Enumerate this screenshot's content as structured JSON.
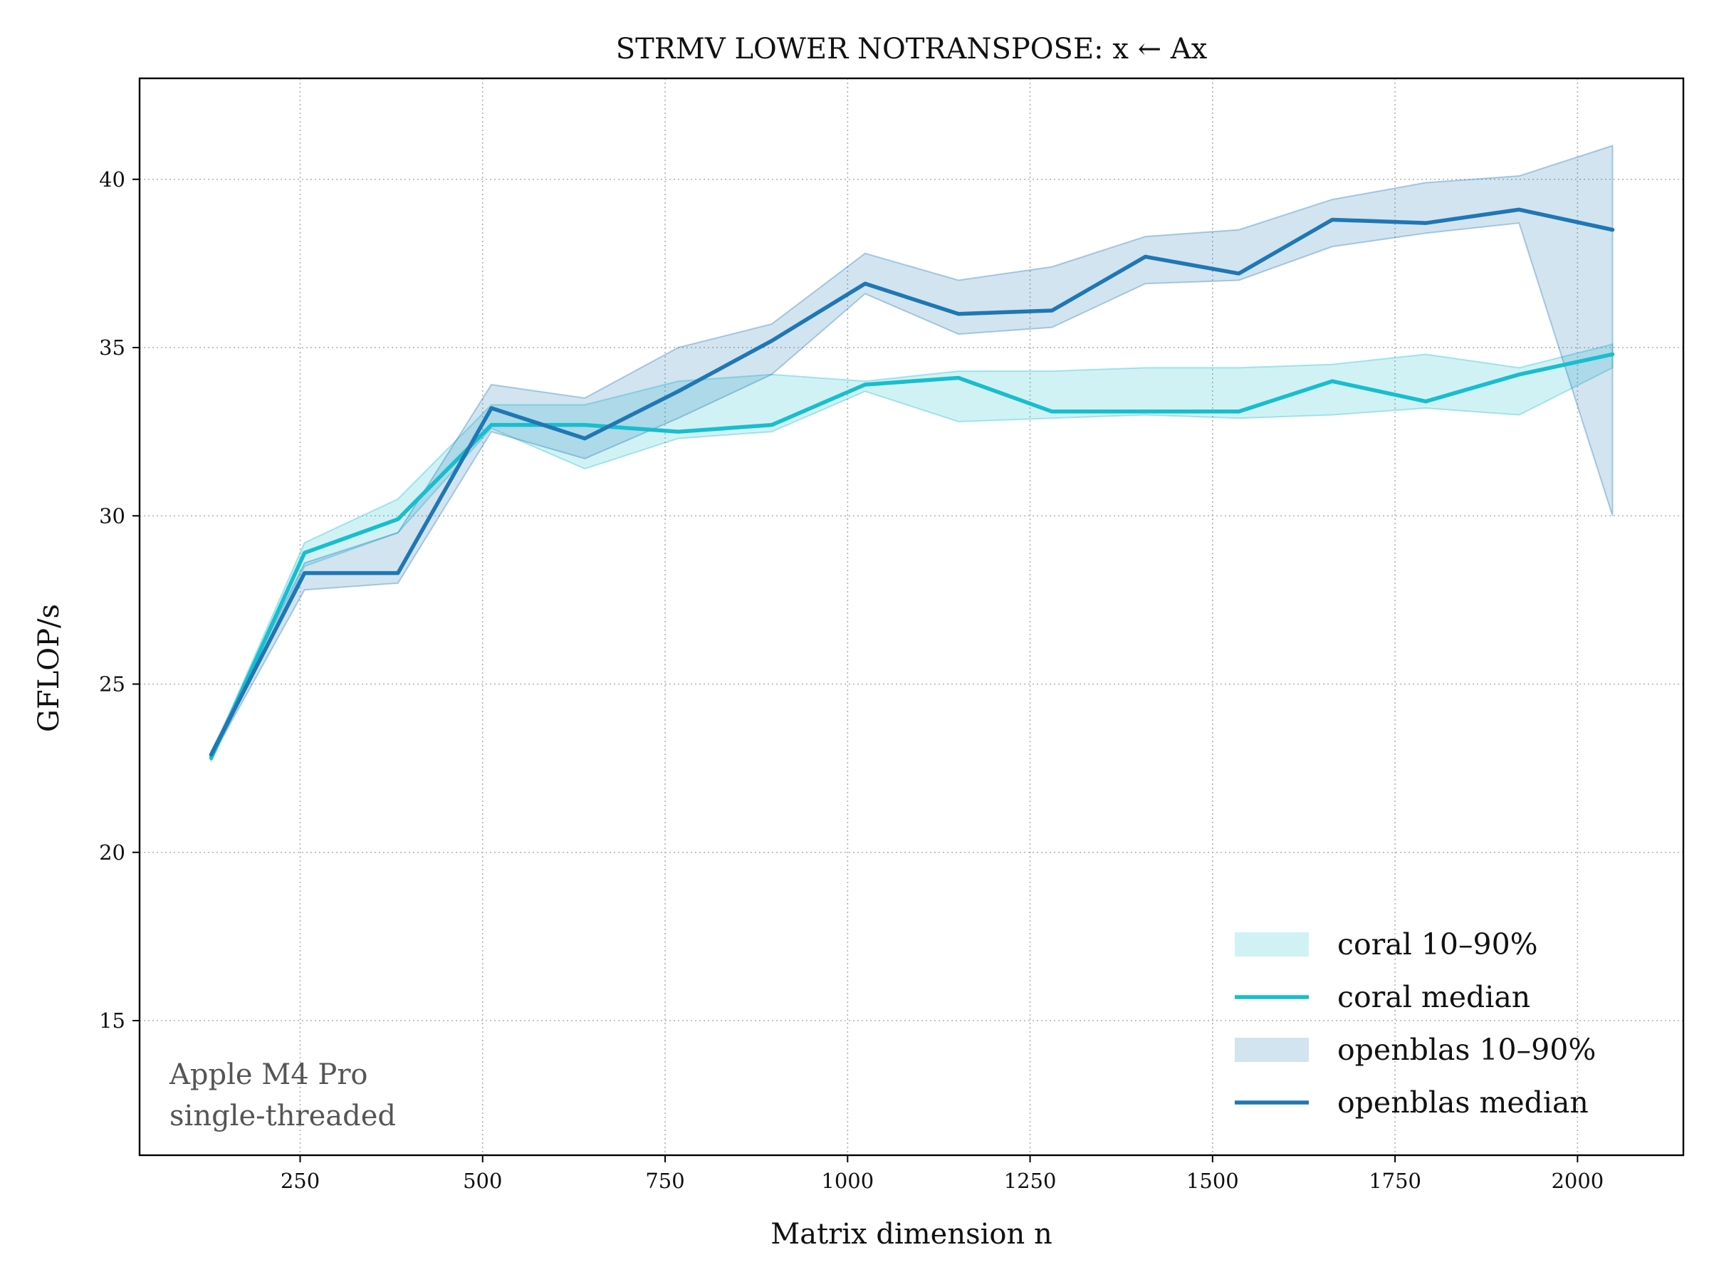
{
  "chart_data": {
    "type": "line",
    "title": "STRMV LOWER NOTRANSPOSE: x ← Ax",
    "xlabel": "Matrix dimension n",
    "ylabel": "GFLOP/s",
    "xlim": [
      30,
      2145
    ],
    "ylim": [
      11,
      43
    ],
    "xticks": [
      250,
      500,
      750,
      1000,
      1250,
      1500,
      1750,
      2000
    ],
    "yticks": [
      15,
      20,
      25,
      30,
      35,
      40
    ],
    "grid": true,
    "legend_position": "bottom-right",
    "x": [
      128,
      256,
      384,
      512,
      640,
      768,
      896,
      1024,
      1152,
      1280,
      1408,
      1536,
      1664,
      1792,
      1920,
      2048
    ],
    "series": [
      {
        "name": "coral median",
        "color": "#17becf",
        "values": [
          22.8,
          28.9,
          29.9,
          32.7,
          32.7,
          32.5,
          32.7,
          33.9,
          34.1,
          33.1,
          33.1,
          33.1,
          34.0,
          33.4,
          34.2,
          34.8
        ]
      },
      {
        "name": "openblas median",
        "color": "#1f77b4",
        "values": [
          22.9,
          28.3,
          28.3,
          33.2,
          32.3,
          33.7,
          35.2,
          36.9,
          36.0,
          36.1,
          37.7,
          37.2,
          38.8,
          38.7,
          39.1,
          38.5
        ]
      }
    ],
    "bands": [
      {
        "name": "coral 10–90%",
        "color": "#17becf",
        "low": [
          22.7,
          28.5,
          29.5,
          32.6,
          31.4,
          32.3,
          32.5,
          33.7,
          32.8,
          32.9,
          33.0,
          32.9,
          33.0,
          33.2,
          33.0,
          34.4
        ],
        "high": [
          22.9,
          29.2,
          30.5,
          33.3,
          33.3,
          34.0,
          34.2,
          34.0,
          34.3,
          34.3,
          34.4,
          34.4,
          34.5,
          34.8,
          34.4,
          35.1
        ]
      },
      {
        "name": "openblas 10–90%",
        "color": "#1f77b4",
        "low": [
          22.8,
          27.8,
          28.0,
          32.5,
          31.7,
          32.9,
          34.2,
          36.6,
          35.4,
          35.6,
          36.9,
          37.0,
          38.0,
          38.4,
          38.7,
          30.0
        ],
        "high": [
          23.0,
          28.6,
          29.5,
          33.9,
          33.5,
          35.0,
          35.7,
          37.8,
          37.0,
          37.4,
          38.3,
          38.5,
          39.4,
          39.9,
          40.1,
          41.0
        ]
      }
    ],
    "legend": [
      {
        "label": "coral 10–90%",
        "kind": "band",
        "color": "#17becf"
      },
      {
        "label": "coral median",
        "kind": "line",
        "color": "#17becf"
      },
      {
        "label": "openblas 10–90%",
        "kind": "band",
        "color": "#1f77b4"
      },
      {
        "label": "openblas median",
        "kind": "line",
        "color": "#1f77b4"
      }
    ],
    "annotation": [
      "Apple M4 Pro",
      "single-threaded"
    ]
  }
}
